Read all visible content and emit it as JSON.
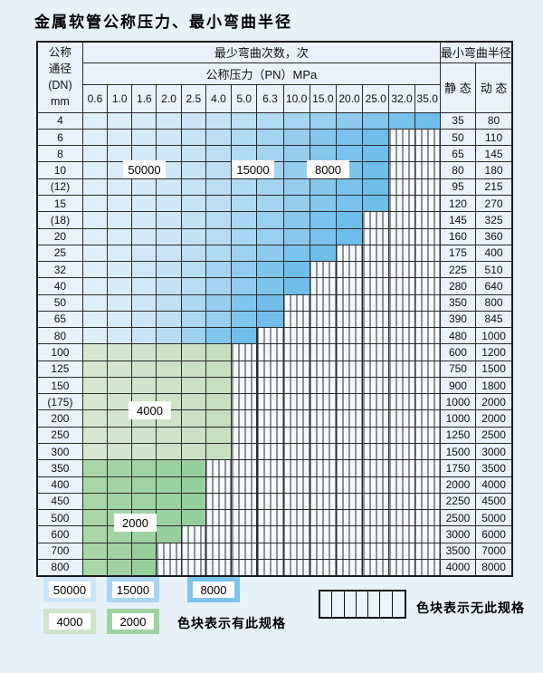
{
  "title": "金属软管公称压力、最小弯曲半径",
  "table": {
    "header": {
      "dn_label_lines": [
        "公称",
        "通径",
        "(DN)",
        "mm"
      ],
      "bend_cycles_label": "最少弯曲次数，次",
      "pressure_label": "公称压力（PN）MPa",
      "radius_label": "最小弯曲半径",
      "static_label": "静 态",
      "dynamic_label": "动 态",
      "pressure_columns": [
        "0.6",
        "1.0",
        "1.6",
        "2.0",
        "2.5",
        "4.0",
        "5.0",
        "6.3",
        "10.0",
        "15.0",
        "20.0",
        "25.0",
        "32.0",
        "35.0"
      ]
    },
    "rows": [
      {
        "dn": "4",
        "zone": "blue",
        "max_pressure": "35.0",
        "static": "35",
        "dynamic": "80"
      },
      {
        "dn": "6",
        "zone": "blue",
        "max_pressure": "25.0",
        "static": "50",
        "dynamic": "110"
      },
      {
        "dn": "8",
        "zone": "blue",
        "max_pressure": "25.0",
        "static": "65",
        "dynamic": "145"
      },
      {
        "dn": "10",
        "zone": "blue",
        "max_pressure": "25.0",
        "static": "80",
        "dynamic": "180"
      },
      {
        "dn": "(12)",
        "zone": "blue",
        "max_pressure": "25.0",
        "static": "95",
        "dynamic": "215"
      },
      {
        "dn": "15",
        "zone": "blue",
        "max_pressure": "25.0",
        "static": "120",
        "dynamic": "270"
      },
      {
        "dn": "(18)",
        "zone": "blue",
        "max_pressure": "20.0",
        "static": "145",
        "dynamic": "325"
      },
      {
        "dn": "20",
        "zone": "blue",
        "max_pressure": "20.0",
        "static": "160",
        "dynamic": "360"
      },
      {
        "dn": "25",
        "zone": "blue",
        "max_pressure": "15.0",
        "static": "175",
        "dynamic": "400"
      },
      {
        "dn": "32",
        "zone": "blue",
        "max_pressure": "10.0",
        "static": "225",
        "dynamic": "510"
      },
      {
        "dn": "40",
        "zone": "blue",
        "max_pressure": "10.0",
        "static": "280",
        "dynamic": "640"
      },
      {
        "dn": "50",
        "zone": "blue",
        "max_pressure": "6.3",
        "static": "350",
        "dynamic": "800"
      },
      {
        "dn": "65",
        "zone": "blue",
        "max_pressure": "6.3",
        "static": "390",
        "dynamic": "845"
      },
      {
        "dn": "80",
        "zone": "blue",
        "max_pressure": "5.0",
        "static": "480",
        "dynamic": "1000"
      },
      {
        "dn": "100",
        "zone": "green-light",
        "max_pressure": "4.0",
        "static": "600",
        "dynamic": "1200"
      },
      {
        "dn": "125",
        "zone": "green-light",
        "max_pressure": "4.0",
        "static": "750",
        "dynamic": "1500"
      },
      {
        "dn": "150",
        "zone": "green-light",
        "max_pressure": "4.0",
        "static": "900",
        "dynamic": "1800"
      },
      {
        "dn": "(175)",
        "zone": "green-light",
        "max_pressure": "4.0",
        "static": "1000",
        "dynamic": "2000"
      },
      {
        "dn": "200",
        "zone": "green-light",
        "max_pressure": "4.0",
        "static": "1000",
        "dynamic": "2000"
      },
      {
        "dn": "250",
        "zone": "green-light",
        "max_pressure": "4.0",
        "static": "1250",
        "dynamic": "2500"
      },
      {
        "dn": "300",
        "zone": "green-light",
        "max_pressure": "4.0",
        "static": "1500",
        "dynamic": "3000"
      },
      {
        "dn": "350",
        "zone": "green-dark",
        "max_pressure": "2.5",
        "static": "1750",
        "dynamic": "3500"
      },
      {
        "dn": "400",
        "zone": "green-dark",
        "max_pressure": "2.5",
        "static": "2000",
        "dynamic": "4000"
      },
      {
        "dn": "450",
        "zone": "green-dark",
        "max_pressure": "2.5",
        "static": "2250",
        "dynamic": "4500"
      },
      {
        "dn": "500",
        "zone": "green-dark",
        "max_pressure": "2.5",
        "static": "2500",
        "dynamic": "5000"
      },
      {
        "dn": "600",
        "zone": "green-dark",
        "max_pressure": "2.0",
        "static": "3000",
        "dynamic": "6000"
      },
      {
        "dn": "700",
        "zone": "green-dark",
        "max_pressure": "1.6",
        "static": "3500",
        "dynamic": "7000"
      },
      {
        "dn": "800",
        "zone": "green-dark",
        "max_pressure": "1.6",
        "static": "4000",
        "dynamic": "8000"
      }
    ],
    "zone_labels": [
      "50000",
      "15000",
      "8000",
      "4000",
      "2000"
    ]
  },
  "legend": {
    "items": [
      {
        "value": "50000",
        "color": "#cde6f7"
      },
      {
        "value": "15000",
        "color": "#a9d6f2"
      },
      {
        "value": "8000",
        "color": "#7cc4ec"
      },
      {
        "value": "4000",
        "color": "#cfe4ca"
      },
      {
        "value": "2000",
        "color": "#9ed3a0"
      }
    ],
    "has_spec_text": "色块表示有此规格",
    "no_spec_text": "色块表示无此规格"
  },
  "colors": {
    "page_background": "#e7f1f8",
    "cell_background": "#e9f2fa",
    "blue_light": "#dfeffa",
    "blue_dark": "#6fbde9",
    "green_light": "#cfe4cb",
    "green_dark": "#9ed3a0",
    "grid_line": "#2b2b2b"
  }
}
